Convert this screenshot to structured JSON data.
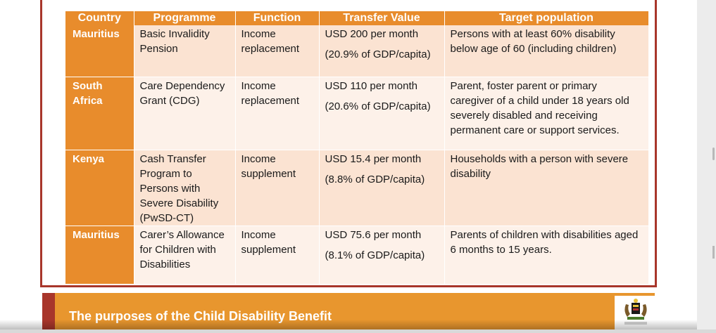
{
  "table": {
    "headers": [
      "Country",
      "Programme",
      "Function",
      "Transfer Value",
      "Target population"
    ],
    "rows": [
      {
        "country": "Mauritius",
        "programme": "Basic Invalidity Pension",
        "function": "Income replacement",
        "transfer_amount": "USD 200 per month",
        "transfer_share": "(20.9% of GDP/capita)",
        "target": "Persons with at least 60% disability below age of 60 (including children)"
      },
      {
        "country": "South Africa",
        "programme": "Care Dependency Grant (CDG)",
        "function": "Income replacement",
        "transfer_amount": "USD 110 per month",
        "transfer_share": "(20.6% of GDP/capita)",
        "target": "Parent, foster parent or primary caregiver of a child under 18 years old severely disabled and receiving permanent care or support services."
      },
      {
        "country": "Kenya",
        "programme": "Cash Transfer Program to Persons with Severe Disability (PwSD-CT)",
        "function": "Income supplement",
        "transfer_amount": "USD 15.4 per month",
        "transfer_share": "(8.8% of GDP/capita)",
        "target": "Households with a person with severe disability"
      },
      {
        "country": "Mauritius",
        "programme": "Carer’s Allowance for Children with Disabilities",
        "function": "Income supplement",
        "transfer_amount": "USD 75.6 per month",
        "transfer_share": "(8.1% of GDP/capita)",
        "target": "Parents of children with disabilities aged 6 months to 15 years."
      }
    ]
  },
  "banner": {
    "title": "The purposes of the Child Disability Benefit"
  },
  "colors": {
    "header_orange": "#e88c2c",
    "frame_red": "#a8362b",
    "row_peach": "#fbe3d2",
    "row_light": "#fdf1e9"
  },
  "icons": {
    "emblem": "coat-of-arms-icon"
  }
}
